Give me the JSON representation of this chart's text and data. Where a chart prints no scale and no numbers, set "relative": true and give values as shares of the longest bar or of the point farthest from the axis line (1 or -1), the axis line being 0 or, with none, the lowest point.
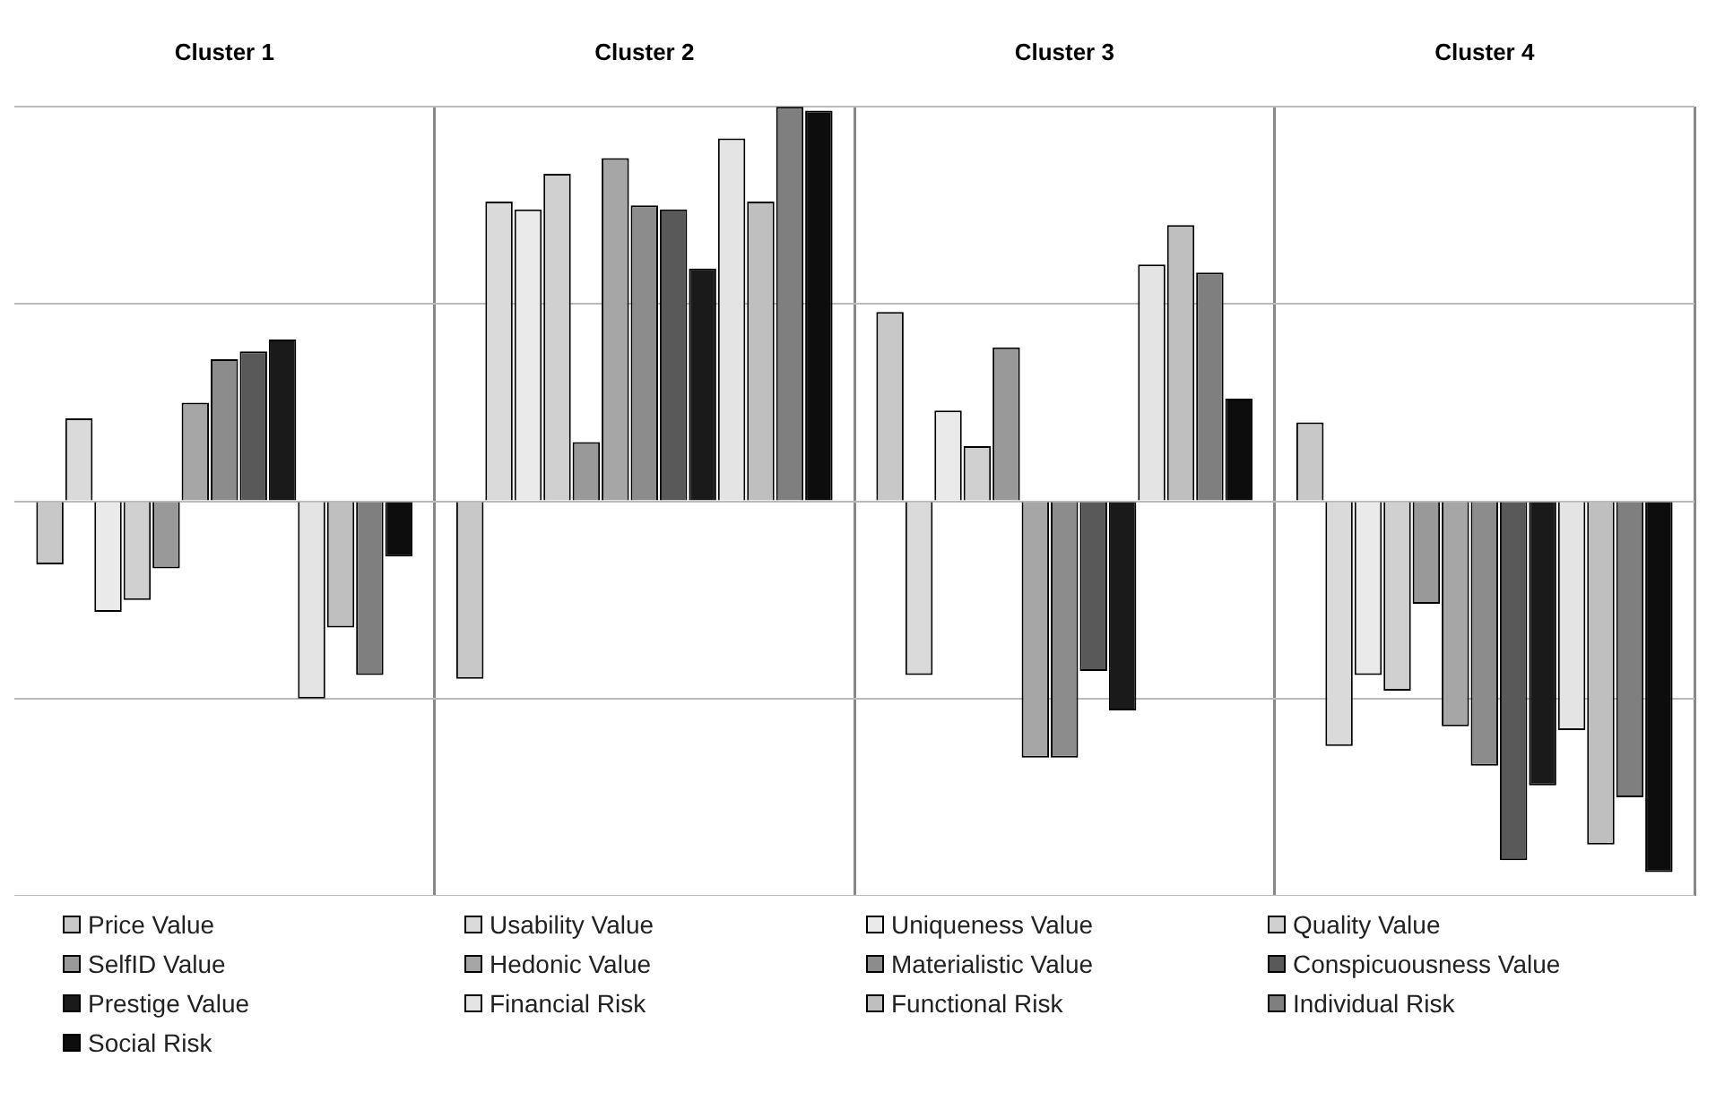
{
  "chart_data": {
    "type": "bar",
    "relative": true,
    "categories": [
      "Cluster 1",
      "Cluster 2",
      "Cluster 3",
      "Cluster 4"
    ],
    "grid": true,
    "legend": "bottom",
    "series": [
      {
        "name": "Price Value",
        "color": "#c8c8c8",
        "values": [
          -0.16,
          -0.45,
          0.48,
          0.2
        ]
      },
      {
        "name": "Usability Value",
        "color": "#dadada",
        "values": [
          0.21,
          0.76,
          -0.44,
          -0.62
        ]
      },
      {
        "name": "Uniqueness Value",
        "color": "#eaeaea",
        "values": [
          -0.28,
          0.74,
          0.23,
          -0.44
        ]
      },
      {
        "name": "Quality Value",
        "color": "#d0d0d0",
        "values": [
          -0.25,
          0.83,
          0.14,
          -0.48
        ]
      },
      {
        "name": "SelfID Value",
        "color": "#999999",
        "values": [
          -0.17,
          0.15,
          0.39,
          -0.26
        ]
      },
      {
        "name": "Hedonic Value",
        "color": "#a6a6a6",
        "values": [
          0.25,
          0.87,
          -0.65,
          -0.57
        ]
      },
      {
        "name": "Materialistic Value",
        "color": "#8c8c8c",
        "values": [
          0.36,
          0.75,
          -0.65,
          -0.67
        ]
      },
      {
        "name": "Conspicuousness Value",
        "color": "#595959",
        "values": [
          0.38,
          0.74,
          -0.43,
          -0.91
        ]
      },
      {
        "name": "Prestige Value",
        "color": "#1a1a1a",
        "values": [
          0.41,
          0.59,
          -0.53,
          -0.72
        ]
      },
      {
        "name": "Financial Risk",
        "color": "#e4e4e4",
        "values": [
          -0.5,
          0.92,
          0.6,
          -0.58
        ]
      },
      {
        "name": "Functional Risk",
        "color": "#bfbfbf",
        "values": [
          -0.32,
          0.76,
          0.7,
          -0.87
        ]
      },
      {
        "name": "Individual Risk",
        "color": "#7f7f7f",
        "values": [
          -0.44,
          1,
          0.58,
          -0.75
        ]
      },
      {
        "name": "Social Risk",
        "color": "#0d0d0d",
        "values": [
          -0.14,
          0.99,
          0.26,
          -0.94
        ]
      }
    ]
  }
}
